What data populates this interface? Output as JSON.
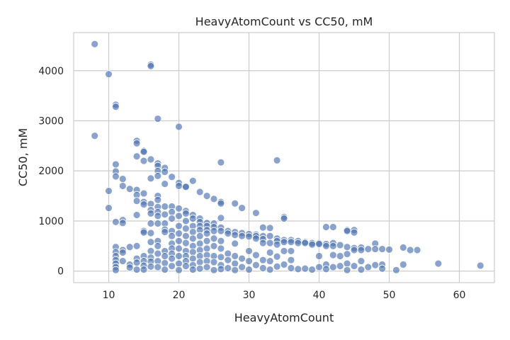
{
  "chart_data": {
    "type": "scatter",
    "title": "HeavyAtomCount vs CC50, mM",
    "xlabel": "HeavyAtomCount",
    "ylabel": "CC50, mM",
    "xlim": [
      5,
      65
    ],
    "ylim": [
      -230,
      4760
    ],
    "xticks": [
      10,
      20,
      30,
      40,
      50,
      60
    ],
    "yticks": [
      0,
      1000,
      2000,
      3000,
      4000
    ],
    "grid": true,
    "point_color": "#4c72b0",
    "points": [
      [
        8,
        4530
      ],
      [
        8,
        2700
      ],
      [
        10,
        3930
      ],
      [
        10,
        1600
      ],
      [
        10,
        1260
      ],
      [
        11,
        3320
      ],
      [
        11,
        3280
      ],
      [
        11,
        2130
      ],
      [
        11,
        1990
      ],
      [
        11,
        1890
      ],
      [
        11,
        980
      ],
      [
        11,
        480
      ],
      [
        11,
        380
      ],
      [
        11,
        300
      ],
      [
        11,
        220
      ],
      [
        11,
        150
      ],
      [
        11,
        80
      ],
      [
        11,
        20
      ],
      [
        12,
        1840
      ],
      [
        12,
        1700
      ],
      [
        12,
        1020
      ],
      [
        12,
        960
      ],
      [
        12,
        420
      ],
      [
        12,
        370
      ],
      [
        12,
        200
      ],
      [
        13,
        1640
      ],
      [
        13,
        480
      ],
      [
        13,
        130
      ],
      [
        13,
        70
      ],
      [
        14,
        2600
      ],
      [
        14,
        2550
      ],
      [
        14,
        2290
      ],
      [
        14,
        1620
      ],
      [
        14,
        1520
      ],
      [
        14,
        1400
      ],
      [
        14,
        1120
      ],
      [
        14,
        500
      ],
      [
        14,
        250
      ],
      [
        14,
        170
      ],
      [
        14,
        30
      ],
      [
        15,
        2400
      ],
      [
        15,
        2380
      ],
      [
        15,
        2200
      ],
      [
        15,
        1550
      ],
      [
        15,
        1380
      ],
      [
        15,
        1330
      ],
      [
        15,
        800
      ],
      [
        15,
        770
      ],
      [
        15,
        300
      ],
      [
        15,
        200
      ],
      [
        15,
        110
      ],
      [
        15,
        30
      ],
      [
        16,
        4120
      ],
      [
        16,
        4090
      ],
      [
        16,
        2230
      ],
      [
        16,
        1850
      ],
      [
        16,
        1340
      ],
      [
        16,
        1220
      ],
      [
        16,
        1150
      ],
      [
        16,
        950
      ],
      [
        16,
        760
      ],
      [
        16,
        580
      ],
      [
        16,
        400
      ],
      [
        16,
        270
      ],
      [
        16,
        190
      ],
      [
        16,
        90
      ],
      [
        17,
        3040
      ],
      [
        17,
        2150
      ],
      [
        17,
        2100
      ],
      [
        17,
        2000
      ],
      [
        17,
        1900
      ],
      [
        17,
        1500
      ],
      [
        17,
        1420
      ],
      [
        17,
        1280
      ],
      [
        17,
        1180
      ],
      [
        17,
        1100
      ],
      [
        17,
        950
      ],
      [
        17,
        600
      ],
      [
        17,
        500
      ],
      [
        17,
        350
      ],
      [
        17,
        200
      ],
      [
        17,
        80
      ],
      [
        18,
        2060
      ],
      [
        18,
        1980
      ],
      [
        18,
        1740
      ],
      [
        18,
        1290
      ],
      [
        18,
        1130
      ],
      [
        18,
        950
      ],
      [
        18,
        830
      ],
      [
        18,
        780
      ],
      [
        18,
        400
      ],
      [
        18,
        300
      ],
      [
        18,
        160
      ],
      [
        18,
        30
      ],
      [
        19,
        1880
      ],
      [
        19,
        1290
      ],
      [
        19,
        1180
      ],
      [
        19,
        1050
      ],
      [
        19,
        800
      ],
      [
        19,
        700
      ],
      [
        19,
        550
      ],
      [
        19,
        450
      ],
      [
        19,
        350
      ],
      [
        19,
        250
      ],
      [
        19,
        100
      ],
      [
        20,
        2880
      ],
      [
        20,
        1760
      ],
      [
        20,
        1700
      ],
      [
        20,
        1250
      ],
      [
        20,
        1100
      ],
      [
        20,
        900
      ],
      [
        20,
        750
      ],
      [
        20,
        600
      ],
      [
        20,
        450
      ],
      [
        20,
        300
      ],
      [
        20,
        150
      ],
      [
        20,
        20
      ],
      [
        21,
        1690
      ],
      [
        21,
        1680
      ],
      [
        21,
        1200
      ],
      [
        21,
        1150
      ],
      [
        21,
        1000
      ],
      [
        21,
        850
      ],
      [
        21,
        700
      ],
      [
        21,
        560
      ],
      [
        21,
        400
      ],
      [
        21,
        300
      ],
      [
        21,
        200
      ],
      [
        21,
        100
      ],
      [
        22,
        1800
      ],
      [
        22,
        1120
      ],
      [
        22,
        1050
      ],
      [
        22,
        900
      ],
      [
        22,
        780
      ],
      [
        22,
        650
      ],
      [
        22,
        500
      ],
      [
        22,
        380
      ],
      [
        22,
        250
      ],
      [
        22,
        120
      ],
      [
        22,
        30
      ],
      [
        23,
        1580
      ],
      [
        23,
        1050
      ],
      [
        23,
        980
      ],
      [
        23,
        900
      ],
      [
        23,
        820
      ],
      [
        23,
        700
      ],
      [
        23,
        550
      ],
      [
        23,
        420
      ],
      [
        23,
        300
      ],
      [
        23,
        180
      ],
      [
        23,
        50
      ],
      [
        24,
        1500
      ],
      [
        24,
        960
      ],
      [
        24,
        900
      ],
      [
        24,
        820
      ],
      [
        24,
        750
      ],
      [
        24,
        600
      ],
      [
        24,
        450
      ],
      [
        24,
        320
      ],
      [
        24,
        200
      ],
      [
        24,
        80
      ],
      [
        25,
        1440
      ],
      [
        25,
        950
      ],
      [
        25,
        880
      ],
      [
        25,
        800
      ],
      [
        25,
        650
      ],
      [
        25,
        500
      ],
      [
        25,
        300
      ],
      [
        25,
        180
      ],
      [
        25,
        20
      ],
      [
        26,
        2170
      ],
      [
        26,
        1380
      ],
      [
        26,
        1350
      ],
      [
        26,
        1060
      ],
      [
        26,
        870
      ],
      [
        26,
        800
      ],
      [
        26,
        600
      ],
      [
        26,
        450
      ],
      [
        26,
        280
      ],
      [
        26,
        120
      ],
      [
        26,
        40
      ],
      [
        27,
        800
      ],
      [
        27,
        750
      ],
      [
        27,
        350
      ],
      [
        27,
        220
      ],
      [
        27,
        60
      ],
      [
        28,
        1350
      ],
      [
        28,
        780
      ],
      [
        28,
        720
      ],
      [
        28,
        550
      ],
      [
        28,
        300
      ],
      [
        28,
        150
      ],
      [
        28,
        20
      ],
      [
        29,
        1260
      ],
      [
        29,
        760
      ],
      [
        29,
        700
      ],
      [
        29,
        250
      ],
      [
        29,
        80
      ],
      [
        30,
        740
      ],
      [
        30,
        690
      ],
      [
        30,
        400
      ],
      [
        30,
        200
      ],
      [
        30,
        30
      ],
      [
        31,
        1160
      ],
      [
        31,
        730
      ],
      [
        31,
        700
      ],
      [
        31,
        650
      ],
      [
        31,
        320
      ],
      [
        31,
        120
      ],
      [
        32,
        870
      ],
      [
        32,
        700
      ],
      [
        32,
        640
      ],
      [
        32,
        560
      ],
      [
        32,
        220
      ],
      [
        32,
        60
      ],
      [
        33,
        860
      ],
      [
        33,
        700
      ],
      [
        33,
        560
      ],
      [
        33,
        370
      ],
      [
        33,
        200
      ],
      [
        33,
        30
      ],
      [
        34,
        2210
      ],
      [
        34,
        650
      ],
      [
        34,
        600
      ],
      [
        34,
        530
      ],
      [
        34,
        290
      ],
      [
        34,
        90
      ],
      [
        35,
        1080
      ],
      [
        35,
        1050
      ],
      [
        35,
        620
      ],
      [
        35,
        580
      ],
      [
        35,
        400
      ],
      [
        35,
        130
      ],
      [
        36,
        620
      ],
      [
        36,
        580
      ],
      [
        36,
        400
      ],
      [
        36,
        220
      ],
      [
        36,
        60
      ],
      [
        37,
        600
      ],
      [
        37,
        560
      ],
      [
        37,
        40
      ],
      [
        38,
        580
      ],
      [
        38,
        560
      ],
      [
        38,
        50
      ],
      [
        39,
        560
      ],
      [
        39,
        530
      ],
      [
        39,
        30
      ],
      [
        40,
        560
      ],
      [
        40,
        540
      ],
      [
        40,
        300
      ],
      [
        40,
        80
      ],
      [
        41,
        880
      ],
      [
        41,
        540
      ],
      [
        41,
        500
      ],
      [
        41,
        130
      ],
      [
        41,
        40
      ],
      [
        42,
        880
      ],
      [
        42,
        560
      ],
      [
        42,
        500
      ],
      [
        42,
        320
      ],
      [
        42,
        80
      ],
      [
        43,
        520
      ],
      [
        43,
        300
      ],
      [
        43,
        100
      ],
      [
        44,
        820
      ],
      [
        44,
        800
      ],
      [
        44,
        480
      ],
      [
        44,
        340
      ],
      [
        44,
        150
      ],
      [
        44,
        20
      ],
      [
        45,
        820
      ],
      [
        45,
        770
      ],
      [
        45,
        460
      ],
      [
        45,
        420
      ],
      [
        45,
        100
      ],
      [
        46,
        470
      ],
      [
        46,
        420
      ],
      [
        46,
        200
      ],
      [
        46,
        30
      ],
      [
        47,
        440
      ],
      [
        47,
        80
      ],
      [
        48,
        550
      ],
      [
        48,
        440
      ],
      [
        48,
        120
      ],
      [
        49,
        440
      ],
      [
        49,
        130
      ],
      [
        49,
        50
      ],
      [
        50,
        430
      ],
      [
        51,
        20
      ],
      [
        52,
        470
      ],
      [
        52,
        130
      ],
      [
        53,
        420
      ],
      [
        54,
        420
      ],
      [
        57,
        150
      ],
      [
        63,
        110
      ]
    ]
  }
}
